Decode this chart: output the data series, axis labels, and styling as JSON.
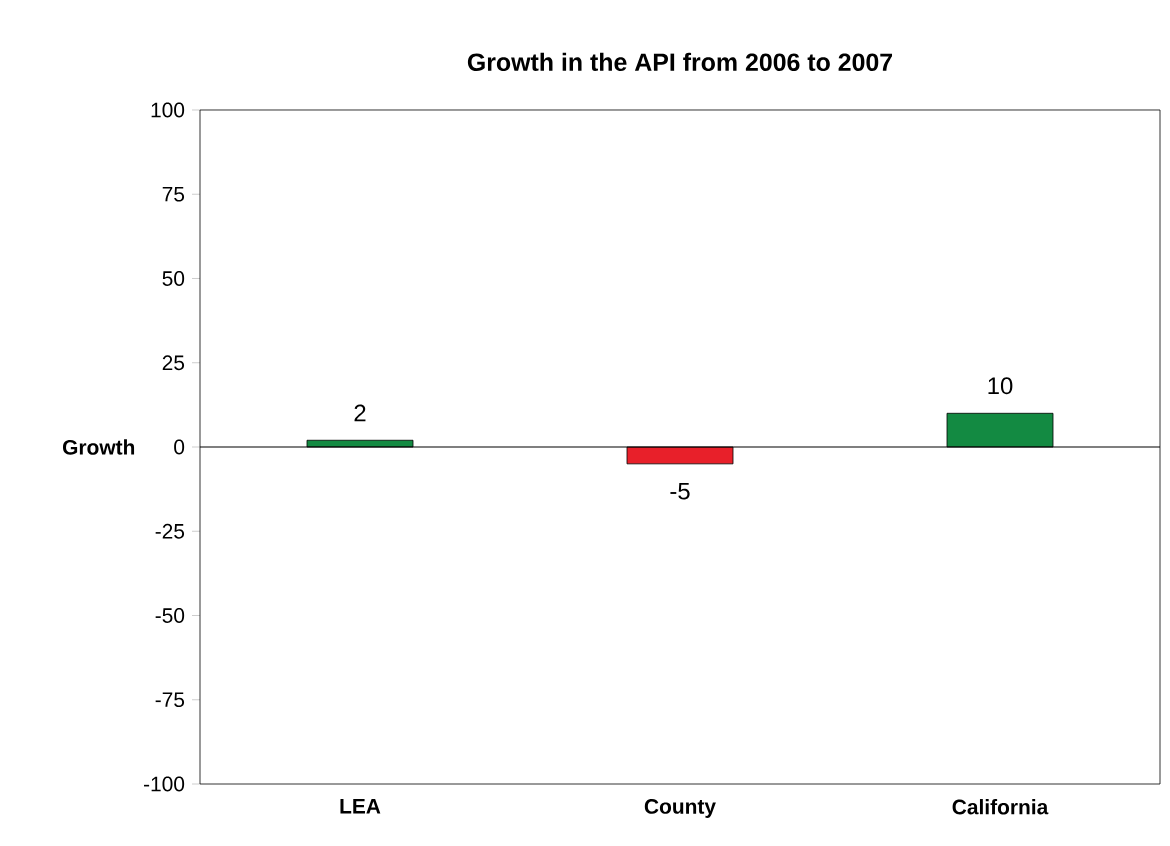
{
  "chart_data": {
    "type": "bar",
    "title": "Growth in the API from 2006 to 2007",
    "ylabel": "Growth",
    "categories": [
      "LEA",
      "County",
      "California"
    ],
    "values": [
      2,
      -5,
      10
    ],
    "colors": [
      "#138a42",
      "#e8202a",
      "#138a42"
    ],
    "ylim": [
      -100,
      100
    ],
    "yticks": [
      -100,
      -75,
      -50,
      -25,
      0,
      25,
      50,
      75,
      100
    ],
    "data_labels": true
  }
}
